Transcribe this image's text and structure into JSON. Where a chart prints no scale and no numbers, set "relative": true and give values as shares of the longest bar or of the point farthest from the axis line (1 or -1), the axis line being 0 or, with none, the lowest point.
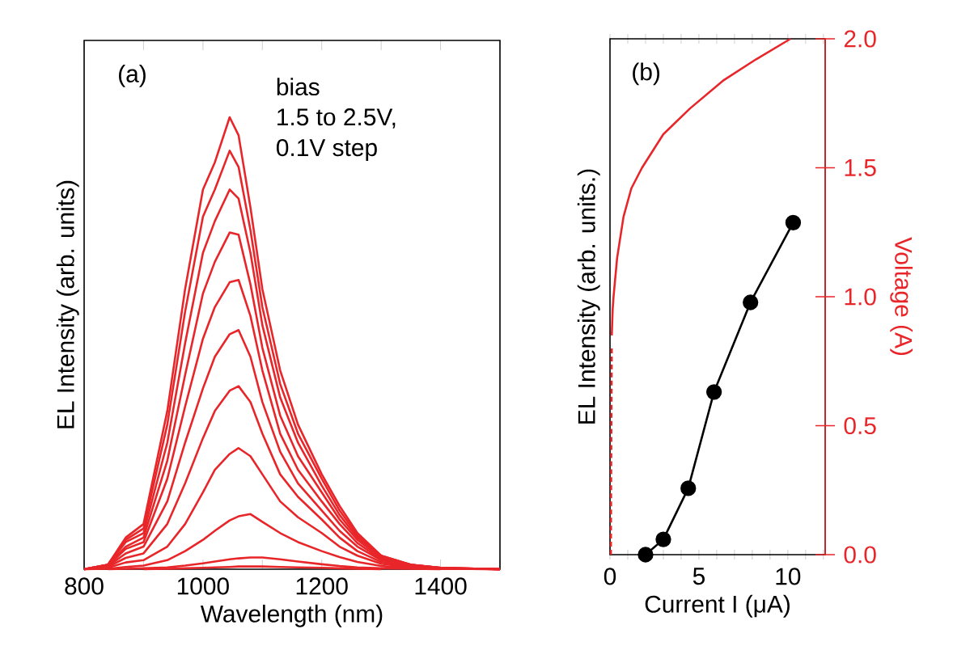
{
  "chart_data": [
    {
      "type": "line",
      "xlabel": "Wavelength (nm)",
      "ylabel": "EL Intensity (arb. units)",
      "relative": true,
      "tick_labels": "x",
      "marker": "none",
      "xlim": [
        800,
        1500
      ],
      "xticks": [
        800,
        {
          "value": 900,
          "label": null
        },
        1000,
        {
          "value": 1100,
          "label": null
        },
        1200,
        {
          "value": 1300,
          "label": null
        },
        1400,
        {
          "value": 1500,
          "label": null
        }
      ],
      "annotations": [
        "(a)",
        "bias",
        "1.5 to 2.5V,",
        "0.1V step"
      ],
      "x": [
        800,
        840,
        870,
        900,
        940,
        970,
        1000,
        1020,
        1045,
        1060,
        1080,
        1100,
        1130,
        1160,
        1200,
        1230,
        1260,
        1300,
        1350,
        1400,
        1500
      ],
      "series": [
        {
          "color": "#e8262a",
          "values": [
            0,
            0.01,
            0.07,
            0.1,
            0.35,
            0.62,
            0.84,
            0.9,
            1.0,
            0.96,
            0.8,
            0.62,
            0.44,
            0.32,
            0.21,
            0.14,
            0.08,
            0.03,
            0.01,
            0.003,
            0
          ]
        },
        {
          "color": "#e8262a",
          "values": [
            0,
            0.01,
            0.065,
            0.09,
            0.32,
            0.57,
            0.78,
            0.84,
            0.926,
            0.89,
            0.75,
            0.58,
            0.41,
            0.3,
            0.2,
            0.13,
            0.075,
            0.03,
            0.01,
            0.003,
            0
          ]
        },
        {
          "color": "#e8262a",
          "values": [
            0,
            0.01,
            0.06,
            0.08,
            0.28,
            0.5,
            0.7,
            0.77,
            0.84,
            0.82,
            0.7,
            0.54,
            0.38,
            0.28,
            0.185,
            0.12,
            0.07,
            0.028,
            0.01,
            0.003,
            0
          ]
        },
        {
          "color": "#e8262a",
          "values": [
            0,
            0.01,
            0.05,
            0.07,
            0.24,
            0.43,
            0.61,
            0.68,
            0.745,
            0.74,
            0.63,
            0.49,
            0.34,
            0.25,
            0.17,
            0.11,
            0.065,
            0.025,
            0.01,
            0.003,
            0
          ]
        },
        {
          "color": "#e8262a",
          "values": [
            0,
            0.008,
            0.045,
            0.06,
            0.2,
            0.36,
            0.51,
            0.58,
            0.635,
            0.64,
            0.56,
            0.44,
            0.3,
            0.22,
            0.15,
            0.1,
            0.058,
            0.022,
            0.008,
            0.002,
            0
          ]
        },
        {
          "color": "#e8262a",
          "values": [
            0,
            0.007,
            0.035,
            0.05,
            0.15,
            0.28,
            0.4,
            0.47,
            0.52,
            0.529,
            0.47,
            0.37,
            0.26,
            0.19,
            0.13,
            0.085,
            0.05,
            0.02,
            0.007,
            0.002,
            0
          ]
        },
        {
          "color": "#e8262a",
          "values": [
            0,
            0.005,
            0.025,
            0.035,
            0.1,
            0.19,
            0.29,
            0.35,
            0.395,
            0.405,
            0.37,
            0.3,
            0.21,
            0.16,
            0.11,
            0.07,
            0.04,
            0.016,
            0.006,
            0.002,
            0
          ]
        },
        {
          "color": "#e8262a",
          "values": [
            0,
            0.003,
            0.015,
            0.02,
            0.05,
            0.1,
            0.17,
            0.22,
            0.255,
            0.268,
            0.25,
            0.21,
            0.15,
            0.115,
            0.08,
            0.05,
            0.03,
            0.012,
            0.004,
            0.001,
            0
          ]
        },
        {
          "color": "#e8262a",
          "values": [
            0,
            0.001,
            0.005,
            0.008,
            0.02,
            0.04,
            0.065,
            0.085,
            0.108,
            0.117,
            0.122,
            0.105,
            0.08,
            0.06,
            0.04,
            0.027,
            0.016,
            0.007,
            0.002,
            0.001,
            0
          ]
        },
        {
          "color": "#e8262a",
          "x": [
            840,
            870,
            900,
            940,
            970,
            1000,
            1020,
            1045,
            1060,
            1080,
            1100,
            1130,
            1160,
            1200,
            1230,
            1260,
            1300,
            1350,
            1400
          ],
          "values": [
            0,
            0.001,
            0.002,
            0.004,
            0.008,
            0.013,
            0.017,
            0.022,
            0.024,
            0.026,
            0.026,
            0.022,
            0.017,
            0.011,
            0.007,
            0.004,
            0.002,
            0.001,
            0
          ]
        },
        {
          "color": "#e8262a",
          "x": [
            900,
            940,
            970,
            1000,
            1020,
            1045,
            1060,
            1080,
            1100,
            1130,
            1160,
            1200,
            1230,
            1260,
            1300
          ],
          "values": [
            0,
            0.001,
            0.002,
            0.003,
            0.004,
            0.005,
            0.006,
            0.006,
            0.006,
            0.005,
            0.004,
            0.003,
            0.002,
            0.001,
            0
          ]
        }
      ]
    },
    {
      "type": "line",
      "xlabel": "Current I (μA)",
      "ylabel": "EL Intensity (arb. units.)",
      "relative": true,
      "tick_labels": "x",
      "xlim": [
        0,
        12.1
      ],
      "xticks": [
        0,
        {
          "value": 1,
          "label": null
        },
        {
          "value": 2,
          "label": null
        },
        {
          "value": 3,
          "label": null
        },
        {
          "value": 4,
          "label": null
        },
        5,
        {
          "value": 6,
          "label": null
        },
        {
          "value": 7,
          "label": null
        },
        {
          "value": 8,
          "label": null
        },
        {
          "value": 9,
          "label": null
        },
        10,
        {
          "value": 11,
          "label": null
        },
        {
          "value": 12,
          "label": null
        }
      ],
      "annotations": [
        "(b)"
      ],
      "series": [
        {
          "color": "#000000",
          "marker": "circle",
          "x": [
            2.0,
            3.0,
            4.4,
            5.85,
            7.9,
            10.3
          ],
          "values": [
            0,
            0.046,
            0.2,
            0.49,
            0.76,
            1
          ]
        }
      ]
    },
    {
      "type": "line",
      "ylabel": "Voltage (A)",
      "tick_labels": "y",
      "xlim": [
        0,
        12.1
      ],
      "ylim": [
        0,
        2.0
      ],
      "yticks": [
        {
          "value": 0,
          "label": "0.0"
        },
        {
          "value": 0.5,
          "label": "0.5"
        },
        {
          "value": 1,
          "label": "1.0"
        },
        {
          "value": 1.5,
          "label": "1.5"
        },
        {
          "value": 2,
          "label": "2.0"
        }
      ],
      "series": [
        {
          "color": "#e8262a",
          "marker": "none",
          "x": [
            0.1,
            0.15,
            0.2,
            0.4,
            0.76,
            1.2,
            1.8,
            3.0,
            4.5,
            6.4,
            8.2,
            10.15
          ],
          "values": [
            0.85,
            0.95,
            1.0,
            1.15,
            1.31,
            1.42,
            1.5,
            1.63,
            1.73,
            1.84,
            1.92,
            2.0
          ]
        },
        {
          "color": "#e8262a",
          "marker": "none",
          "line_style": "dashed",
          "x": [
            0.05,
            0.07,
            0.1
          ],
          "values": [
            0,
            0.4,
            0.8
          ]
        }
      ]
    }
  ]
}
